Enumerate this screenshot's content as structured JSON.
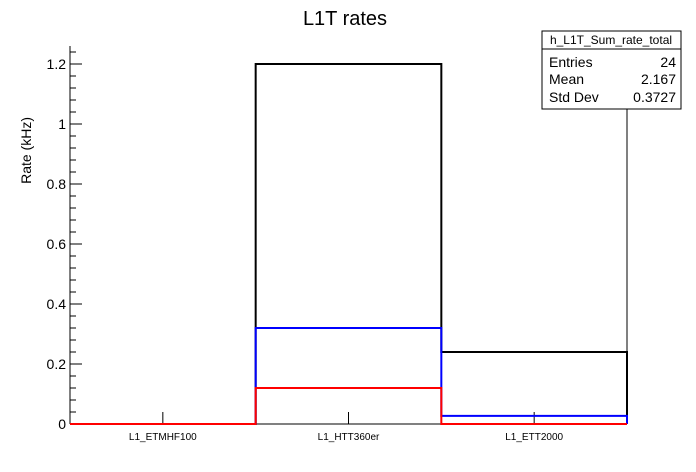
{
  "chart_data": {
    "type": "bar",
    "title": "L1T rates",
    "xlabel": "",
    "ylabel": "Rate (kHz)",
    "ylim": [
      0,
      1.26
    ],
    "yticks": [
      "0",
      "0.2",
      "0.4",
      "0.6",
      "0.8",
      "1",
      "1.2"
    ],
    "categories": [
      "L1_ETMHF100",
      "L1_HTT360er",
      "L1_ETT2000"
    ],
    "series": [
      {
        "color": "#000000",
        "values": [
          0,
          1.2,
          0.24
        ]
      },
      {
        "color": "#0000ff",
        "values": [
          0,
          0.32,
          0.027
        ]
      },
      {
        "color": "#ff0000",
        "values": [
          0,
          0.12,
          0
        ]
      }
    ],
    "grid": false,
    "legend": "none"
  },
  "stats_box": {
    "title": "h_L1T_Sum_rate_total",
    "rows": [
      {
        "label": "Entries",
        "value": "24"
      },
      {
        "label": "Mean",
        "value": "2.167"
      },
      {
        "label": "Std Dev",
        "value": "0.3727"
      }
    ]
  }
}
